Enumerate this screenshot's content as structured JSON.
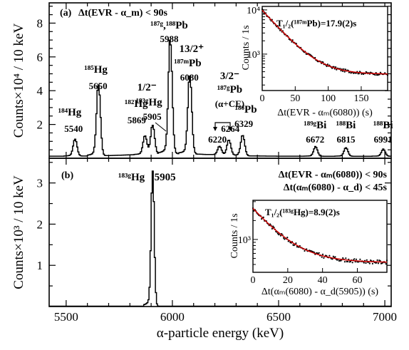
{
  "chart_data": [
    {
      "type": "line",
      "panel_label": "(a)",
      "condition": "Δt(EVR - α_m) < 90s",
      "ylabel": "Counts×10⁴ / 10 keV",
      "xlim": [
        5420,
        7030
      ],
      "ylim": [
        0,
        9.2
      ],
      "y_ticks": [
        "2",
        "4",
        "6",
        "8"
      ],
      "peaks": [
        {
          "x": 5540,
          "y": 1.0,
          "energy": "5540",
          "isotope": "¹⁸⁴Hg"
        },
        {
          "x": 5650,
          "y": 4.2,
          "energy": "5650",
          "isotope": "¹⁸⁵Hg"
        },
        {
          "x": 5869,
          "y": 1.05,
          "energy": "5869",
          "isotope": "¹⁸²Hg"
        },
        {
          "x": 5905,
          "y": 1.7,
          "energy": "5905",
          "isotope": "¹⁸³ᵍHg",
          "spin": "1/2⁻"
        },
        {
          "x": 5988,
          "y": 6.6,
          "energy": "5988",
          "isotope": "¹⁸⁷ᵍ,¹⁸⁸Pb"
        },
        {
          "x": 6080,
          "y": 4.6,
          "energy": "6080",
          "isotope": "¹⁸⁷ᵐPb",
          "spin": "13/2⁺"
        },
        {
          "x": 6220,
          "y": 0.5,
          "energy": "6220"
        },
        {
          "x": 6264,
          "y": 0.9,
          "energy": "6264",
          "isotope": "¹⁸⁷ᵍPb",
          "spin": "3/2⁻",
          "note": "(α+CE)"
        },
        {
          "x": 6329,
          "y": 1.2,
          "energy": "6329",
          "isotope": "¹⁸⁶Pb"
        },
        {
          "x": 6672,
          "y": 0.55,
          "energy": "6672",
          "isotope": "¹⁸⁹ᵍBi"
        },
        {
          "x": 6815,
          "y": 0.5,
          "energy": "6815",
          "isotope": "¹⁸⁸Bi"
        },
        {
          "x": 6991,
          "y": 0.4,
          "energy": "6991",
          "isotope": "¹⁸⁸Bi"
        }
      ],
      "inset": {
        "type": "scatter",
        "title": "T₁/₂(¹⁸⁷ᵐPb)=17.9(2)s",
        "xlabel": "Δt(EVR - αₘ(6080)) (s)",
        "ylabel": "Counts / 1s",
        "xlim": [
          0,
          190
        ],
        "x_ticks": [
          "0",
          "50",
          "100",
          "150"
        ],
        "y_scale": "log",
        "ylim": [
          150,
          12000
        ],
        "y_ticks": [
          "10³",
          "10⁴"
        ],
        "fit": {
          "amplitude": 9500,
          "half_life": 17.9,
          "background": 350
        }
      }
    },
    {
      "type": "line",
      "panel_label": "(b)",
      "conditions": [
        "Δt(EVR - αₘ(6080)) < 90s",
        "Δt(αₘ(6080) - α_d) < 45s"
      ],
      "xlabel": "α-particle energy (keV)",
      "ylabel": "Counts×10³ / 10 keV",
      "xlim": [
        5420,
        7030
      ],
      "ylim": [
        0,
        3.6
      ],
      "x_ticks": [
        "5500",
        "6000",
        "6500",
        "7000"
      ],
      "y_ticks": [
        "1",
        "2",
        "3"
      ],
      "peaks": [
        {
          "x": 5905,
          "y": 3.28,
          "energy": "5905",
          "isotope": "¹⁸³ᵍHg"
        }
      ],
      "inset": {
        "type": "scatter",
        "title": "T₁/₂(¹⁸³ᵍHg)=8.9(2)s",
        "xlabel": "Δt(αₘ(6080) - α_d(5905)) (s)",
        "ylabel": "Counts / 1s",
        "xlim": [
          0,
          77
        ],
        "x_ticks": [
          "0",
          "20",
          "40",
          "60"
        ],
        "y_scale": "log",
        "ylim": [
          300,
          4200
        ],
        "y_ticks": [
          "10³"
        ],
        "fit": {
          "amplitude": 2700,
          "half_life": 8.9,
          "background": 430
        }
      }
    }
  ]
}
